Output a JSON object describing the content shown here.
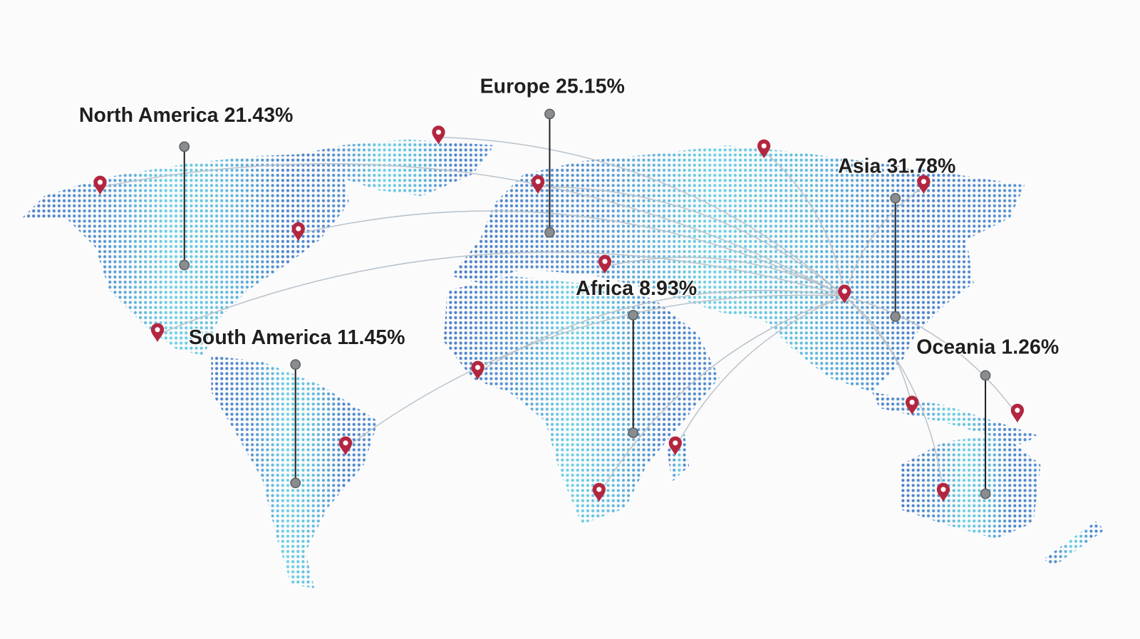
{
  "regions": [
    {
      "name": "North America",
      "share": "21.43%"
    },
    {
      "name": "Europe",
      "share": "25.15%"
    },
    {
      "name": "Asia",
      "share": "31.78%"
    },
    {
      "name": "Africa",
      "share": "8.93%"
    },
    {
      "name": "South America",
      "share": "11.45%"
    },
    {
      "name": "Oceania",
      "share": "1.26%"
    }
  ]
}
